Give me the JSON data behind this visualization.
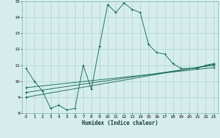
{
  "xlabel": "Humidex (Indice chaleur)",
  "bg_color": "#d5eeed",
  "grid_color": "#aacfcc",
  "line_color": "#1a6b5a",
  "xlim": [
    -0.5,
    23.5
  ],
  "ylim": [
    8,
    15
  ],
  "xticks": [
    0,
    1,
    2,
    3,
    4,
    5,
    6,
    7,
    8,
    9,
    10,
    11,
    12,
    13,
    14,
    15,
    16,
    17,
    18,
    19,
    20,
    21,
    22,
    23
  ],
  "yticks": [
    8,
    9,
    10,
    11,
    12,
    13,
    14,
    15
  ],
  "series": [
    {
      "x": [
        0,
        1,
        2,
        3,
        4,
        5,
        6,
        7,
        8,
        9,
        10,
        11,
        12,
        13,
        14,
        15,
        16,
        17,
        18,
        19,
        20,
        21,
        22,
        23
      ],
      "y": [
        10.8,
        10.0,
        9.4,
        8.3,
        8.5,
        8.2,
        8.3,
        11.0,
        9.5,
        12.2,
        14.8,
        14.3,
        14.9,
        14.5,
        14.3,
        12.3,
        11.8,
        11.7,
        11.1,
        10.8,
        10.8,
        10.8,
        11.0,
        11.1
      ]
    },
    {
      "x": [
        0,
        23
      ],
      "y": [
        9.0,
        11.05
      ]
    },
    {
      "x": [
        0,
        23
      ],
      "y": [
        9.3,
        11.0
      ]
    },
    {
      "x": [
        0,
        23
      ],
      "y": [
        9.6,
        10.85
      ]
    }
  ]
}
